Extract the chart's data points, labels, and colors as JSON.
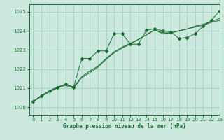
{
  "xlabel": "Graphe pression niveau de la mer (hPa)",
  "xlim": [
    -0.5,
    23
  ],
  "ylim": [
    1019.6,
    1025.4
  ],
  "yticks": [
    1020,
    1021,
    1022,
    1023,
    1024,
    1025
  ],
  "xticks": [
    0,
    1,
    2,
    3,
    4,
    5,
    6,
    7,
    8,
    9,
    10,
    11,
    12,
    13,
    14,
    15,
    16,
    17,
    18,
    19,
    20,
    21,
    22,
    23
  ],
  "bg_color": "#cce8de",
  "grid_color": "#99ccbb",
  "line_color": "#1a6b30",
  "line1_x": [
    0,
    1,
    2,
    3,
    4,
    5,
    6,
    7,
    8,
    9,
    10,
    11,
    12,
    13,
    14,
    15,
    16,
    17,
    18,
    19,
    20,
    21,
    22,
    23
  ],
  "line1_y": [
    1020.3,
    1020.6,
    1020.85,
    1021.05,
    1021.2,
    1021.05,
    1021.6,
    1021.9,
    1022.15,
    1022.55,
    1022.9,
    1023.15,
    1023.35,
    1023.55,
    1023.8,
    1024.05,
    1023.9,
    1023.9,
    1024.0,
    1024.1,
    1024.25,
    1024.35,
    1024.5,
    1024.65
  ],
  "line2_x": [
    0,
    1,
    2,
    3,
    4,
    5,
    6,
    7,
    8,
    9,
    10,
    11,
    12,
    13,
    14,
    15,
    16,
    17,
    18,
    19,
    20,
    21,
    22,
    23
  ],
  "line2_y": [
    1020.3,
    1020.55,
    1020.8,
    1021.0,
    1021.15,
    1021.0,
    1021.55,
    1021.8,
    1022.1,
    1022.5,
    1022.85,
    1023.1,
    1023.3,
    1023.55,
    1023.8,
    1024.05,
    1023.85,
    1023.9,
    1024.0,
    1024.1,
    1024.2,
    1024.3,
    1024.45,
    1024.55
  ],
  "line3_x": [
    0,
    1,
    2,
    3,
    4,
    5,
    6,
    7,
    8,
    9,
    10,
    11,
    12,
    13,
    14,
    15,
    16,
    17,
    18,
    19,
    20,
    21,
    22,
    23
  ],
  "line3_y": [
    1020.3,
    1020.6,
    1020.85,
    1021.05,
    1021.2,
    1021.05,
    1022.55,
    1022.55,
    1022.95,
    1022.95,
    1023.85,
    1023.85,
    1023.3,
    1023.3,
    1024.05,
    1024.1,
    1024.0,
    1023.95,
    1023.6,
    1023.65,
    1023.85,
    1024.25,
    1024.55,
    1025.05
  ],
  "marker_color": "#1a6b30"
}
